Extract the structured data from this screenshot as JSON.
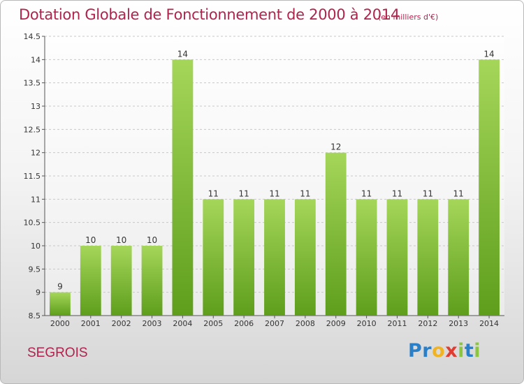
{
  "header": {
    "title": "Dotation Globale de Fonctionnement de 2000 à 2014",
    "subtitle": "(en milliers d'€)"
  },
  "footer": {
    "commune": "SEGROIS",
    "logo_letters": [
      {
        "char": "P",
        "color": "#2a7fc9"
      },
      {
        "char": "r",
        "color": "#2a7fc9"
      },
      {
        "char": "o",
        "color": "#f0b323"
      },
      {
        "char": "x",
        "color": "#e03c31"
      },
      {
        "char": "i",
        "color": "#8cc63f"
      },
      {
        "char": "t",
        "color": "#2a7fc9"
      },
      {
        "char": "i",
        "color": "#8cc63f"
      }
    ]
  },
  "colors": {
    "title": "#b0234d",
    "bar_top": "#a5d65a",
    "bar_bottom": "#5e9e1c",
    "grid": "#c8c8c8"
  },
  "chart_data": {
    "type": "bar",
    "categories": [
      "2000",
      "2001",
      "2002",
      "2003",
      "2004",
      "2005",
      "2006",
      "2007",
      "2008",
      "2009",
      "2010",
      "2011",
      "2012",
      "2013",
      "2014"
    ],
    "values": [
      9,
      10,
      10,
      10,
      14,
      11,
      11,
      11,
      11,
      12,
      11,
      11,
      11,
      11,
      14
    ],
    "data_labels": [
      "9",
      "10",
      "10",
      "10",
      "14",
      "11",
      "11",
      "11",
      "11",
      "12",
      "11",
      "11",
      "11",
      "11",
      "14"
    ],
    "ylim": [
      8.5,
      14.5
    ],
    "y_ticks": [
      8.5,
      9,
      9.5,
      10,
      10.5,
      11,
      11.5,
      12,
      12.5,
      13,
      13.5,
      14,
      14.5
    ],
    "y_tick_labels": [
      "8.5",
      "9",
      "9.5",
      "10",
      "10.5",
      "11",
      "11.5",
      "12",
      "12.5",
      "13",
      "13.5",
      "14",
      "14.5"
    ],
    "grid": "horizontal dashed",
    "xlabel": "",
    "ylabel": ""
  }
}
